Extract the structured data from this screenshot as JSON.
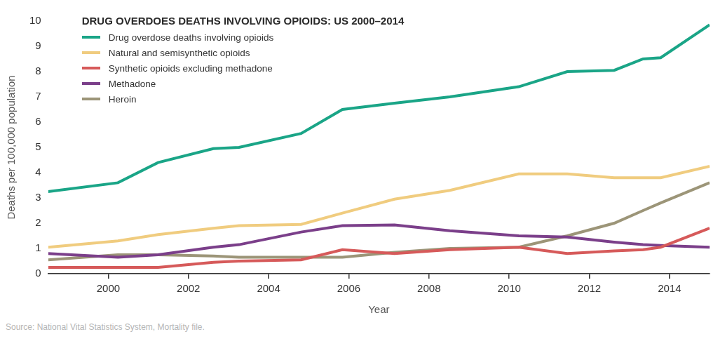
{
  "chart_data": {
    "type": "line",
    "title": "DRUG OVERDOES DEATHS INVOLVING OPIOIDS: US 2000–2014",
    "x_label": "Year",
    "y_label": "Deaths per 100,000 population",
    "source": "Source: National Vital Statistics System, Mortality file.",
    "x": [
      1998.5,
      2000.24,
      2001.24,
      2002.62,
      2003.26,
      2004.81,
      2005.84,
      2007.14,
      2008.52,
      2010.24,
      2011.45,
      2012.62,
      2013.34,
      2013.78,
      2015
    ],
    "series": [
      {
        "name": "Drug overdose deaths involving opioids",
        "color": "#1aa587",
        "values": [
          3.25,
          3.6,
          4.4,
          4.95,
          5.0,
          5.55,
          6.5,
          6.75,
          7.0,
          7.4,
          8.0,
          8.05,
          8.5,
          8.55,
          9.85
        ]
      },
      {
        "name": "Natural and semisynthetic opioids",
        "color": "#f0cc7f",
        "values": [
          1.05,
          1.3,
          1.55,
          1.8,
          1.9,
          1.95,
          2.4,
          2.95,
          3.3,
          3.95,
          3.95,
          3.8,
          3.8,
          3.8,
          4.25
        ]
      },
      {
        "name": "Synthetic opioids excluding methadone",
        "color": "#d65a5a",
        "values": [
          0.25,
          0.25,
          0.25,
          0.45,
          0.5,
          0.55,
          0.95,
          0.8,
          0.95,
          1.05,
          0.8,
          0.9,
          0.95,
          1.05,
          1.8
        ]
      },
      {
        "name": "Methadone",
        "color": "#7b3f8a",
        "values": [
          0.8,
          0.65,
          0.75,
          1.05,
          1.15,
          1.65,
          1.9,
          1.93,
          1.7,
          1.5,
          1.45,
          1.25,
          1.15,
          1.12,
          1.05
        ]
      },
      {
        "name": "Heroin",
        "color": "#9c9578",
        "values": [
          0.55,
          0.75,
          0.75,
          0.7,
          0.65,
          0.65,
          0.65,
          0.85,
          1.0,
          1.05,
          1.5,
          2.0,
          2.5,
          2.8,
          3.6
        ]
      }
    ],
    "xlim": [
      1998.5,
      2015
    ],
    "xticks": [
      2000,
      2002,
      2004,
      2006,
      2008,
      2010,
      2012,
      2014
    ],
    "ylim": [
      0,
      10
    ],
    "yticks": [
      0,
      1,
      2,
      3,
      4,
      5,
      6,
      7,
      8,
      9,
      10
    ],
    "grid": false,
    "legend": "top-left"
  }
}
